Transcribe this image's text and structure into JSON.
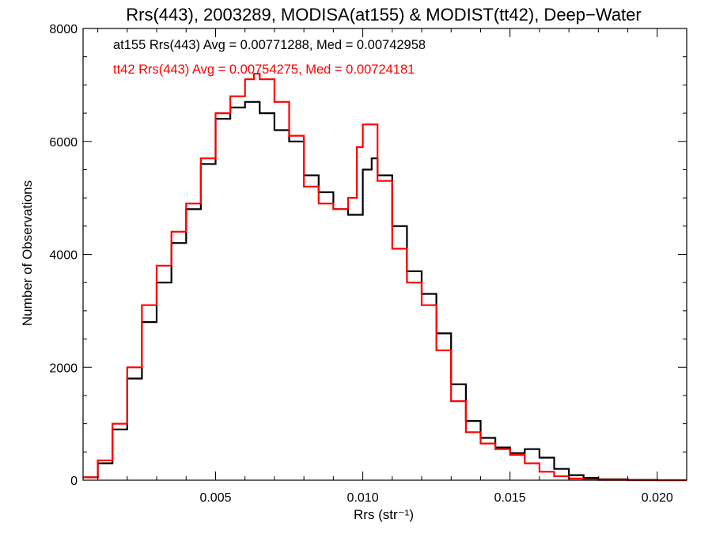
{
  "chart_data": {
    "type": "line",
    "title": "Rrs(443), 2003289, MODISA(at155) & MODIST(tt42), Deep−Water",
    "xlabel": "Rrs (str⁻¹)",
    "ylabel": "Number of Observations",
    "xlim": [
      0.0005,
      0.021
    ],
    "ylim": [
      0,
      8000
    ],
    "x_ticks": [
      0.005,
      0.01,
      0.015,
      0.02
    ],
    "x_tick_labels": [
      "0.005",
      "0.010",
      "0.015",
      "0.020"
    ],
    "y_ticks": [
      0,
      2000,
      4000,
      6000,
      8000
    ],
    "y_tick_labels": [
      "0",
      "2000",
      "4000",
      "6000",
      "8000"
    ],
    "grid": false,
    "step": true,
    "series": [
      {
        "name": "at155",
        "color": "#000000",
        "annotation": "at155 Rrs(443) Avg = 0.00771288, Med = 0.00742958",
        "x": [
          0.0005,
          0.001,
          0.0015,
          0.002,
          0.0025,
          0.003,
          0.0035,
          0.004,
          0.0045,
          0.005,
          0.0055,
          0.006,
          0.0065,
          0.007,
          0.0075,
          0.008,
          0.0085,
          0.009,
          0.0095,
          0.01,
          0.0103,
          0.0105,
          0.011,
          0.0115,
          0.012,
          0.0125,
          0.013,
          0.0135,
          0.014,
          0.0145,
          0.015,
          0.0155,
          0.016,
          0.0165,
          0.017,
          0.0175,
          0.018,
          0.019,
          0.02,
          0.021
        ],
        "y": [
          50,
          300,
          900,
          1800,
          2800,
          3500,
          4200,
          4800,
          5600,
          6400,
          6600,
          6700,
          6500,
          6200,
          6000,
          5400,
          5100,
          4800,
          4700,
          5500,
          5700,
          5400,
          4500,
          3700,
          3300,
          2600,
          1700,
          1050,
          750,
          580,
          480,
          550,
          400,
          200,
          90,
          40,
          15,
          5,
          0,
          0
        ]
      },
      {
        "name": "tt42",
        "color": "#ff0000",
        "annotation": "tt42 Rrs(443) Avg = 0.00754275, Med = 0.00724181",
        "x": [
          0.0005,
          0.001,
          0.0015,
          0.002,
          0.0025,
          0.003,
          0.0035,
          0.004,
          0.0045,
          0.005,
          0.0055,
          0.006,
          0.0063,
          0.0065,
          0.007,
          0.0075,
          0.008,
          0.0085,
          0.009,
          0.0095,
          0.0098,
          0.01,
          0.0105,
          0.011,
          0.0115,
          0.012,
          0.0125,
          0.013,
          0.0135,
          0.014,
          0.0145,
          0.015,
          0.0155,
          0.016,
          0.0165,
          0.017,
          0.0175,
          0.018,
          0.019,
          0.02,
          0.021
        ],
        "y": [
          50,
          350,
          1000,
          2000,
          3100,
          3800,
          4400,
          4900,
          5700,
          6500,
          6800,
          7100,
          7200,
          7100,
          6700,
          6100,
          5200,
          4900,
          4800,
          5000,
          5900,
          6300,
          5300,
          4100,
          3500,
          3100,
          2300,
          1400,
          850,
          650,
          550,
          450,
          300,
          150,
          70,
          30,
          10,
          5,
          0,
          0,
          0
        ]
      }
    ]
  }
}
